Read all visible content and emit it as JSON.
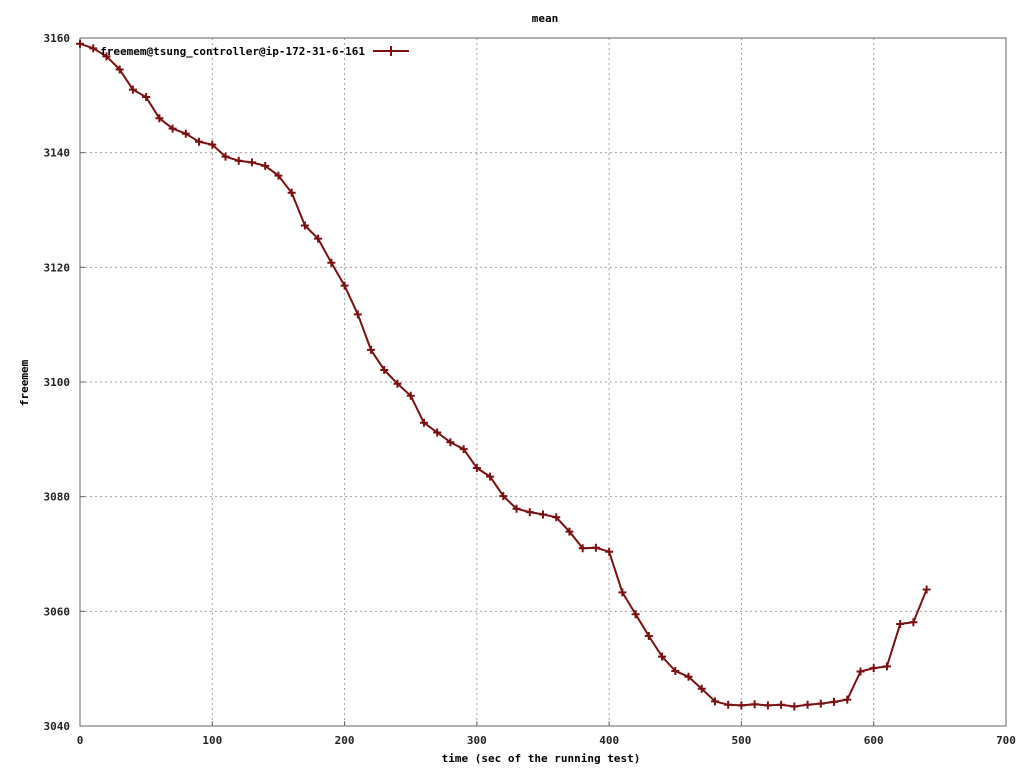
{
  "chart_data": {
    "type": "line",
    "title": "mean",
    "xlabel": "time (sec of the running test)",
    "ylabel": "freemem",
    "xlim": [
      0,
      700
    ],
    "ylim": [
      3040,
      3160
    ],
    "xticks": [
      0,
      100,
      200,
      300,
      400,
      500,
      600,
      700
    ],
    "yticks": [
      3040,
      3060,
      3080,
      3100,
      3120,
      3140,
      3160
    ],
    "grid": true,
    "legend_position": "top-left",
    "series": [
      {
        "name": "freemem@tsung_controller@ip-172-31-6-161",
        "color": "#7a1010",
        "marker": "plus",
        "x": [
          0,
          10,
          20,
          30,
          40,
          50,
          60,
          70,
          80,
          90,
          100,
          110,
          120,
          130,
          140,
          150,
          160,
          170,
          180,
          190,
          200,
          210,
          220,
          230,
          240,
          250,
          260,
          270,
          280,
          290,
          300,
          310,
          320,
          330,
          340,
          350,
          360,
          370,
          380,
          390,
          400,
          410,
          420,
          430,
          440,
          450,
          460,
          470,
          480,
          490,
          500,
          510,
          520,
          530,
          540,
          550,
          560,
          570,
          580,
          590,
          600,
          610,
          620,
          630,
          640
        ],
        "y": [
          3159,
          3158.2,
          3156.8,
          3154.5,
          3151,
          3149.7,
          3146,
          3144.2,
          3143.3,
          3141.9,
          3141.4,
          3139.3,
          3138.6,
          3138.3,
          3137.7,
          3136,
          3133,
          3127.3,
          3125,
          3120.8,
          3116.8,
          3111.8,
          3105.6,
          3102.1,
          3099.7,
          3097.6,
          3092.9,
          3091.2,
          3089.5,
          3088.3,
          3085,
          3083.5,
          3080.1,
          3077.9,
          3077.3,
          3076.9,
          3076.4,
          3073.9,
          3071,
          3071.1,
          3070.4,
          3063.3,
          3059.5,
          3055.7,
          3052.1,
          3049.6,
          3048.6,
          3046.5,
          3044.3,
          3043.7,
          3043.6,
          3043.8,
          3043.6,
          3043.7,
          3043.4,
          3043.7,
          3043.9,
          3044.2,
          3044.6,
          3049.5,
          3050.1,
          3050.4,
          3057.8,
          3058.1,
          3063.8
        ]
      }
    ]
  }
}
